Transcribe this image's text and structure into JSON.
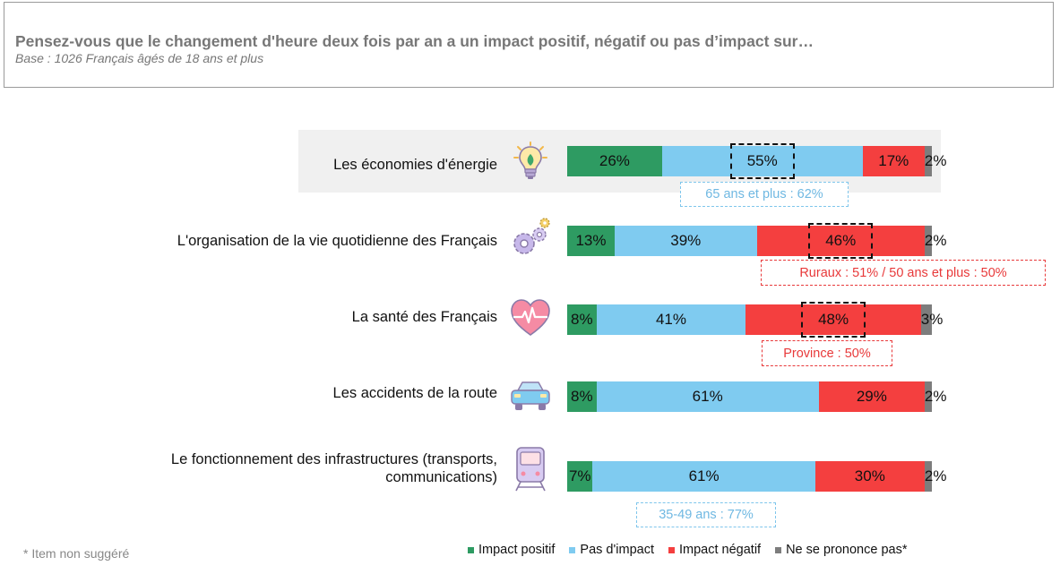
{
  "header": {
    "title": "Pensez-vous que le changement d'heure deux fois par an a un impact positif, négatif ou pas d’impact sur…",
    "subtitle": "Base : 1026 Français âgés de 18 ans et plus"
  },
  "colors": {
    "positif": "#2e9b62",
    "pas_impact": "#7fcbf0",
    "negatif": "#f43f3f",
    "nsp": "#7d7d7d",
    "note_blue": "#7fc6ec",
    "note_red": "#e8393a"
  },
  "icons": [
    "lightbulb-icon",
    "gears-icon",
    "heart-icon",
    "car-icon",
    "train-icon"
  ],
  "chart_data": {
    "type": "bar",
    "stacked": true,
    "orientation": "horizontal",
    "categories": [
      "Les économies d'énergie",
      "L'organisation de la vie quotidienne des Français",
      "La santé des Français",
      "Les accidents de la route",
      "Le fonctionnement des infrastructures (transports, communications)"
    ],
    "series": [
      {
        "name": "Impact positif",
        "values": [
          26,
          13,
          8,
          8,
          7
        ]
      },
      {
        "name": "Pas d'impact",
        "values": [
          55,
          39,
          41,
          61,
          61
        ]
      },
      {
        "name": "Impact négatif",
        "values": [
          17,
          46,
          48,
          29,
          30
        ]
      },
      {
        "name": "Ne se prononce pas*",
        "values": [
          2,
          2,
          3,
          2,
          2
        ]
      }
    ],
    "value_labels": [
      [
        "26%",
        "55%",
        "17%",
        "2%"
      ],
      [
        "13%",
        "39%",
        "46%",
        "2%"
      ],
      [
        "8%",
        "41%",
        "48%",
        "3%"
      ],
      [
        "8%",
        "61%",
        "29%",
        "2%"
      ],
      [
        "7%",
        "61%",
        "30%",
        "2%"
      ]
    ],
    "highlighted": [
      {
        "row": 0,
        "series": 1
      },
      {
        "row": 1,
        "series": 2
      },
      {
        "row": 2,
        "series": 2
      }
    ],
    "annotations": [
      {
        "row": 0,
        "text": "65 ans et plus : 62%",
        "color": "blue"
      },
      {
        "row": 1,
        "text": "Ruraux : 51% / 50 ans et plus : 50%",
        "color": "red"
      },
      {
        "row": 2,
        "text": "Province : 50%",
        "color": "red"
      },
      {
        "row": 4,
        "text": "35-49 ans : 77%",
        "color": "blue"
      }
    ],
    "legend_position": "bottom",
    "xlim": [
      0,
      100
    ]
  },
  "footnote": "* Item non suggéré"
}
